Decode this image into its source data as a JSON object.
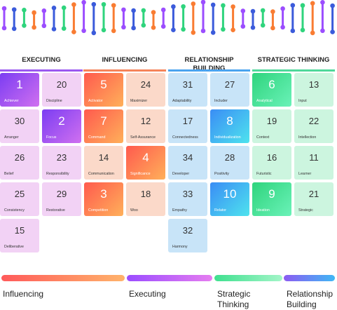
{
  "headers": [
    {
      "label": "EXECUTING",
      "color": "#9b59f0"
    },
    {
      "label": "INFLUENCING",
      "color": "#f5845a"
    },
    {
      "label": "RELATIONSHIP BUILDING",
      "color": "#4aa3ef"
    },
    {
      "label": "STRATEGIC THINKING",
      "color": "#4fd89a"
    }
  ],
  "tiles": [
    {
      "num": "1",
      "name": "Achiever",
      "group": "executing",
      "highlight": true
    },
    {
      "num": "20",
      "name": "Discipline",
      "group": "executing",
      "highlight": false
    },
    {
      "num": "30",
      "name": "Arranger",
      "group": "executing",
      "highlight": false
    },
    {
      "num": "2",
      "name": "Focus",
      "group": "executing",
      "highlight": true
    },
    {
      "num": "26",
      "name": "Belief",
      "group": "executing",
      "highlight": false
    },
    {
      "num": "23",
      "name": "Responsibility",
      "group": "executing",
      "highlight": false
    },
    {
      "num": "25",
      "name": "Consistency",
      "group": "executing",
      "highlight": false
    },
    {
      "num": "29",
      "name": "Restorative",
      "group": "executing",
      "highlight": false
    },
    {
      "num": "15",
      "name": "Deliberative",
      "group": "executing",
      "highlight": false
    },
    {
      "num": "5",
      "name": "Activator",
      "group": "influencing",
      "highlight": true
    },
    {
      "num": "24",
      "name": "Maximizer",
      "group": "influencing",
      "highlight": false
    },
    {
      "num": "7",
      "name": "Command",
      "group": "influencing",
      "highlight": true
    },
    {
      "num": "12",
      "name": "Self-Assurance",
      "group": "influencing",
      "highlight": false
    },
    {
      "num": "14",
      "name": "Communication",
      "group": "influencing",
      "highlight": false
    },
    {
      "num": "4",
      "name": "Significance",
      "group": "influencing",
      "highlight": true
    },
    {
      "num": "3",
      "name": "Competition",
      "group": "influencing",
      "highlight": true
    },
    {
      "num": "18",
      "name": "Woo",
      "group": "influencing",
      "highlight": false
    },
    {
      "num": "31",
      "name": "Adaptability",
      "group": "relationship",
      "highlight": false
    },
    {
      "num": "27",
      "name": "Includer",
      "group": "relationship",
      "highlight": false
    },
    {
      "num": "17",
      "name": "Connectedness",
      "group": "relationship",
      "highlight": false
    },
    {
      "num": "8",
      "name": "Individualization",
      "group": "relationship",
      "highlight": true
    },
    {
      "num": "34",
      "name": "Developer",
      "group": "relationship",
      "highlight": false
    },
    {
      "num": "28",
      "name": "Positivity",
      "group": "relationship",
      "highlight": false
    },
    {
      "num": "33",
      "name": "Empathy",
      "group": "relationship",
      "highlight": false
    },
    {
      "num": "10",
      "name": "Relator",
      "group": "relationship",
      "highlight": true
    },
    {
      "num": "32",
      "name": "Harmony",
      "group": "relationship",
      "highlight": false
    },
    {
      "num": "6",
      "name": "Analytical",
      "group": "strategic",
      "highlight": true
    },
    {
      "num": "13",
      "name": "Input",
      "group": "strategic",
      "highlight": false
    },
    {
      "num": "19",
      "name": "Context",
      "group": "strategic",
      "highlight": false
    },
    {
      "num": "22",
      "name": "Intellection",
      "group": "strategic",
      "highlight": false
    },
    {
      "num": "16",
      "name": "Futuristic",
      "group": "strategic",
      "highlight": false
    },
    {
      "num": "11",
      "name": "Learner",
      "group": "strategic",
      "highlight": false
    },
    {
      "num": "9",
      "name": "Ideation",
      "group": "strategic",
      "highlight": true
    },
    {
      "num": "21",
      "name": "Strategic",
      "group": "strategic",
      "highlight": false
    }
  ],
  "legend": [
    {
      "label": "Influencing",
      "group": "influencing"
    },
    {
      "label": "Executing",
      "group": "executing"
    },
    {
      "label": "Strategic Thinking",
      "group": "strategic"
    },
    {
      "label": "Relationship Building",
      "group": "relationship"
    }
  ],
  "colors": {
    "executing": {
      "light": "#f2d2f5",
      "grad": "linear-gradient(135deg,#7b3df2,#d070f0)",
      "bar": "linear-gradient(90deg,#9b4dff,#e57df0)"
    },
    "influencing": {
      "light": "#fbd9c9",
      "grad": "linear-gradient(135deg,#ff5a4e,#ffb05a)",
      "bar": "linear-gradient(90deg,#ff5a5a,#ffb36b)"
    },
    "relationship": {
      "light": "#c8e4f8",
      "grad": "linear-gradient(135deg,#3a8df5,#4ee3ee)",
      "bar": "linear-gradient(90deg,#8c5bf2,#3fb8f5)"
    },
    "strategic": {
      "light": "#ccf5df",
      "grad": "linear-gradient(135deg,#2fd47d,#6af2b8)",
      "bar": "linear-gradient(90deg,#3fe08f,#a3f5c8)"
    }
  },
  "dna_colors": [
    "#9b4dff",
    "#3b5bdb",
    "#2fd47d",
    "#f97c32"
  ]
}
